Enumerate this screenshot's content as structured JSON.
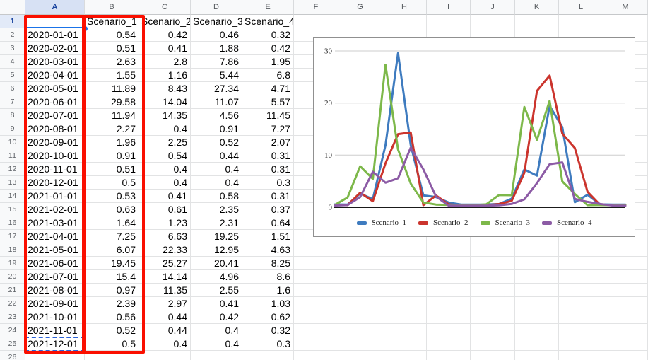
{
  "sheet": {
    "columns": [
      "A",
      "B",
      "C",
      "D",
      "E",
      "F",
      "G",
      "H",
      "I",
      "J",
      "K",
      "L",
      "M"
    ],
    "visible_row_count": 26,
    "header_row": {
      "A": "",
      "B": "Scenario_1",
      "C": "Scenario_2",
      "D": "Scenario_3",
      "E": "Scenario_4"
    },
    "dates": [
      "2020-01-01",
      "2020-02-01",
      "2020-03-01",
      "2020-04-01",
      "2020-05-01",
      "2020-06-01",
      "2020-07-01",
      "2020-08-01",
      "2020-09-01",
      "2020-10-01",
      "2020-11-01",
      "2020-12-01",
      "2021-01-01",
      "2021-02-01",
      "2021-03-01",
      "2021-04-01",
      "2021-05-01",
      "2021-06-01",
      "2021-07-01",
      "2021-08-01",
      "2021-09-01",
      "2021-10-01",
      "2021-11-01",
      "2021-12-01"
    ],
    "data": {
      "Scenario_1": [
        "0.54",
        "0.51",
        "2.63",
        "1.55",
        "11.89",
        "29.58",
        "11.94",
        "2.27",
        "1.96",
        "0.91",
        "0.51",
        "0.5",
        "0.53",
        "0.63",
        "1.64",
        "7.25",
        "6.07",
        "19.45",
        "15.4",
        "0.97",
        "2.39",
        "0.56",
        "0.52",
        "0.5"
      ],
      "Scenario_2": [
        "0.42",
        "0.41",
        "2.8",
        "1.16",
        "8.43",
        "14.04",
        "14.35",
        "0.4",
        "2.25",
        "0.54",
        "0.4",
        "0.4",
        "0.41",
        "0.61",
        "1.23",
        "6.63",
        "22.33",
        "25.27",
        "14.14",
        "11.35",
        "2.97",
        "0.44",
        "0.44",
        "0.4"
      ],
      "Scenario_3": [
        "0.46",
        "1.88",
        "7.86",
        "5.44",
        "27.34",
        "11.07",
        "4.56",
        "0.91",
        "0.52",
        "0.44",
        "0.4",
        "0.4",
        "0.58",
        "2.35",
        "2.31",
        "19.25",
        "12.95",
        "20.41",
        "4.96",
        "2.55",
        "0.41",
        "0.42",
        "0.4",
        "0.4"
      ],
      "Scenario_4": [
        "0.32",
        "0.42",
        "1.95",
        "6.8",
        "4.71",
        "5.57",
        "11.45",
        "7.27",
        "2.07",
        "0.31",
        "0.31",
        "0.3",
        "0.31",
        "0.37",
        "0.64",
        "1.51",
        "4.63",
        "8.25",
        "8.6",
        "1.6",
        "1.03",
        "0.62",
        "0.32",
        "0.3"
      ]
    },
    "selection": {
      "active_cell": "A1",
      "marquee_cell": "A25",
      "selection_color": "#1a73e8"
    },
    "annotations": {
      "highlight_ranges": [
        "A1:A25",
        "B1:B25"
      ],
      "color": "#fa0f00"
    }
  },
  "chart_data": {
    "type": "line",
    "title": "",
    "xlabel": "",
    "ylabel": "",
    "categories": [
      "2020-01-01",
      "2020-02-01",
      "2020-03-01",
      "2020-04-01",
      "2020-05-01",
      "2020-06-01",
      "2020-07-01",
      "2020-08-01",
      "2020-09-01",
      "2020-10-01",
      "2020-11-01",
      "2020-12-01",
      "2021-01-01",
      "2021-02-01",
      "2021-03-01",
      "2021-04-01",
      "2021-05-01",
      "2021-06-01",
      "2021-07-01",
      "2021-08-01",
      "2021-09-01",
      "2021-10-01",
      "2021-11-01",
      "2021-12-01"
    ],
    "series": [
      {
        "name": "Scenario_1",
        "color": "#3e7bbf",
        "values": [
          0.54,
          0.51,
          2.63,
          1.55,
          11.89,
          29.58,
          11.94,
          2.27,
          1.96,
          0.91,
          0.51,
          0.5,
          0.53,
          0.63,
          1.64,
          7.25,
          6.07,
          19.45,
          15.4,
          0.97,
          2.39,
          0.56,
          0.52,
          0.5
        ]
      },
      {
        "name": "Scenario_2",
        "color": "#cb342d",
        "values": [
          0.42,
          0.41,
          2.8,
          1.16,
          8.43,
          14.04,
          14.35,
          0.4,
          2.25,
          0.54,
          0.4,
          0.4,
          0.41,
          0.61,
          1.23,
          6.63,
          22.33,
          25.27,
          14.14,
          11.35,
          2.97,
          0.44,
          0.44,
          0.4
        ]
      },
      {
        "name": "Scenario_3",
        "color": "#7db84a",
        "values": [
          0.46,
          1.88,
          7.86,
          5.44,
          27.34,
          11.07,
          4.56,
          0.91,
          0.52,
          0.44,
          0.4,
          0.4,
          0.58,
          2.35,
          2.31,
          19.25,
          12.95,
          20.41,
          4.96,
          2.55,
          0.41,
          0.42,
          0.4,
          0.4
        ]
      },
      {
        "name": "Scenario_4",
        "color": "#8c5ba5",
        "values": [
          0.32,
          0.42,
          1.95,
          6.8,
          4.71,
          5.57,
          11.45,
          7.27,
          2.07,
          0.31,
          0.31,
          0.3,
          0.31,
          0.37,
          0.64,
          1.51,
          4.63,
          8.25,
          8.6,
          1.6,
          1.03,
          0.62,
          0.32,
          0.3
        ]
      }
    ],
    "ylim": [
      0,
      30
    ],
    "yticks": [
      0,
      10,
      20,
      30
    ],
    "x_axis_labels": "none",
    "grid": true,
    "legend_position": "bottom"
  }
}
